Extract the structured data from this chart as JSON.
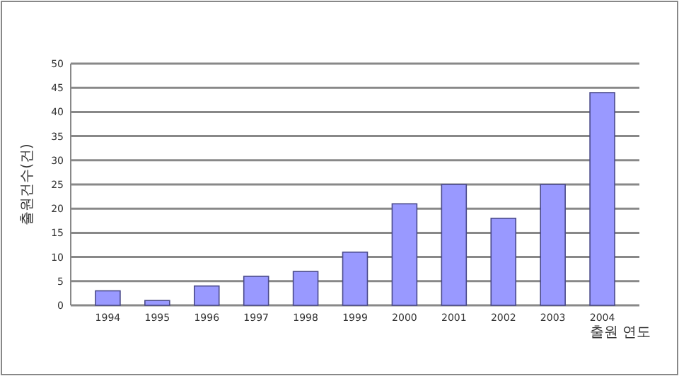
{
  "chart_data": {
    "type": "bar",
    "xlabel": "출원 연도",
    "ylabel": "출원건수(건)",
    "categories": [
      "1994",
      "1995",
      "1996",
      "1997",
      "1998",
      "1999",
      "2000",
      "2001",
      "2002",
      "2003",
      "2004"
    ],
    "values": [
      3,
      1,
      4,
      6,
      7,
      11,
      21,
      25,
      18,
      25,
      44
    ],
    "color": "#9999ff",
    "ylim": [
      0,
      50
    ],
    "yticks": [
      0,
      5,
      10,
      15,
      20,
      25,
      30,
      35,
      40,
      45,
      50
    ],
    "grid": "y"
  }
}
